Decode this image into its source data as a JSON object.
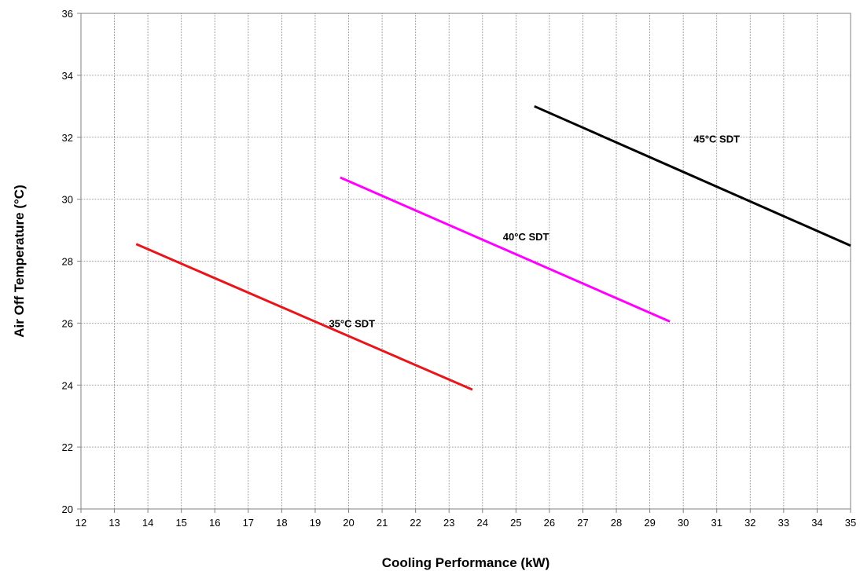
{
  "chart_data": {
    "type": "line",
    "title": "",
    "xlabel": "Cooling Performance (kW)",
    "ylabel": "Air Off Temperature (°C)",
    "xlim": [
      12,
      35
    ],
    "ylim": [
      20,
      36
    ],
    "x_ticks": [
      12,
      13,
      14,
      15,
      16,
      17,
      18,
      19,
      20,
      21,
      22,
      23,
      24,
      25,
      26,
      27,
      28,
      29,
      30,
      31,
      32,
      33,
      34,
      35
    ],
    "y_ticks": [
      20,
      22,
      24,
      26,
      28,
      30,
      32,
      34,
      36
    ],
    "grid": true,
    "legend": "none",
    "series": [
      {
        "name": "35°C SDT",
        "color": "#e8161b",
        "points": [
          [
            13.65,
            28.55
          ],
          [
            23.7,
            23.85
          ]
        ],
        "label_at": [
          20.1,
          26.0
        ]
      },
      {
        "name": "40°C SDT",
        "color": "#ff00ff",
        "points": [
          [
            19.75,
            30.7
          ],
          [
            29.6,
            26.05
          ]
        ],
        "label_at": [
          25.3,
          28.8
        ]
      },
      {
        "name": "45°C SDT",
        "color": "#000000",
        "points": [
          [
            25.55,
            33.0
          ],
          [
            35.0,
            28.5
          ]
        ],
        "label_at": [
          31.0,
          31.95
        ]
      }
    ]
  }
}
